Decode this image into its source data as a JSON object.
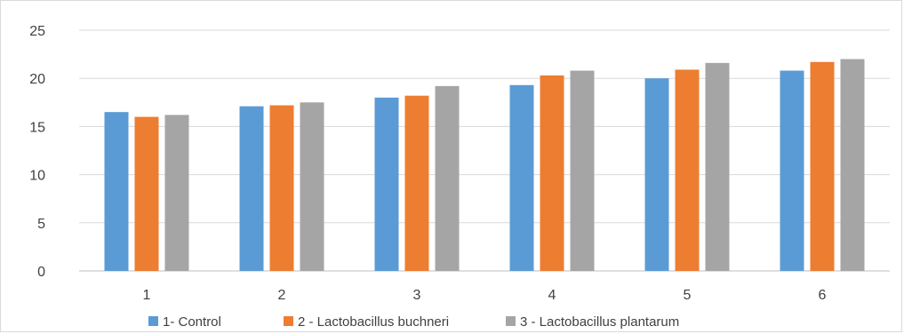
{
  "chart_data": {
    "type": "bar",
    "title": "",
    "xlabel": "",
    "ylabel": "",
    "categories": [
      "1",
      "2",
      "3",
      "4",
      "5",
      "6"
    ],
    "ylim": [
      0,
      25
    ],
    "yticks": [
      0,
      5,
      10,
      15,
      20,
      25
    ],
    "grid": true,
    "legend_position": "bottom",
    "series": [
      {
        "name": "1- Control",
        "color": "#5b9bd5",
        "values": [
          16.5,
          17.1,
          18.0,
          19.3,
          20.0,
          20.8
        ]
      },
      {
        "name": "2 - Lactobacillus buchneri",
        "color": "#ed7d31",
        "values": [
          16.0,
          17.2,
          18.2,
          20.3,
          20.9,
          21.7
        ]
      },
      {
        "name": "3 - Lactobacillus plantarum",
        "color": "#a5a5a5",
        "values": [
          16.2,
          17.5,
          19.2,
          20.8,
          21.6,
          22.0
        ]
      }
    ]
  }
}
